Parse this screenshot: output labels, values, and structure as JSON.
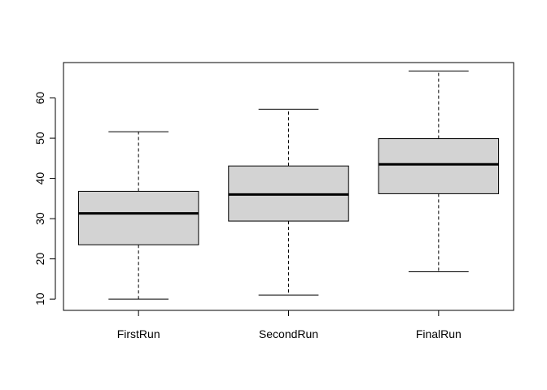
{
  "chart_data": {
    "type": "boxplot",
    "title": "",
    "xlabel": "",
    "ylabel": "",
    "ylim": [
      7.2,
      68.8
    ],
    "y_ticks": [
      10,
      20,
      30,
      40,
      50,
      60
    ],
    "y_tick_labels": [
      "10",
      "20",
      "30",
      "40",
      "50",
      "60"
    ],
    "categories": [
      "FirstRun",
      "SecondRun",
      "FinalRun"
    ],
    "boxes": [
      {
        "category": "FirstRun",
        "min": 10.0,
        "q1": 23.5,
        "median": 31.3,
        "q3": 36.8,
        "max": 51.6
      },
      {
        "category": "SecondRun",
        "min": 11.0,
        "q1": 29.4,
        "median": 36.0,
        "q3": 43.1,
        "max": 57.2
      },
      {
        "category": "FinalRun",
        "min": 16.8,
        "q1": 36.2,
        "median": 43.5,
        "q3": 49.9,
        "max": 66.7
      }
    ],
    "box_fill": "#d3d3d3",
    "grid": false
  }
}
